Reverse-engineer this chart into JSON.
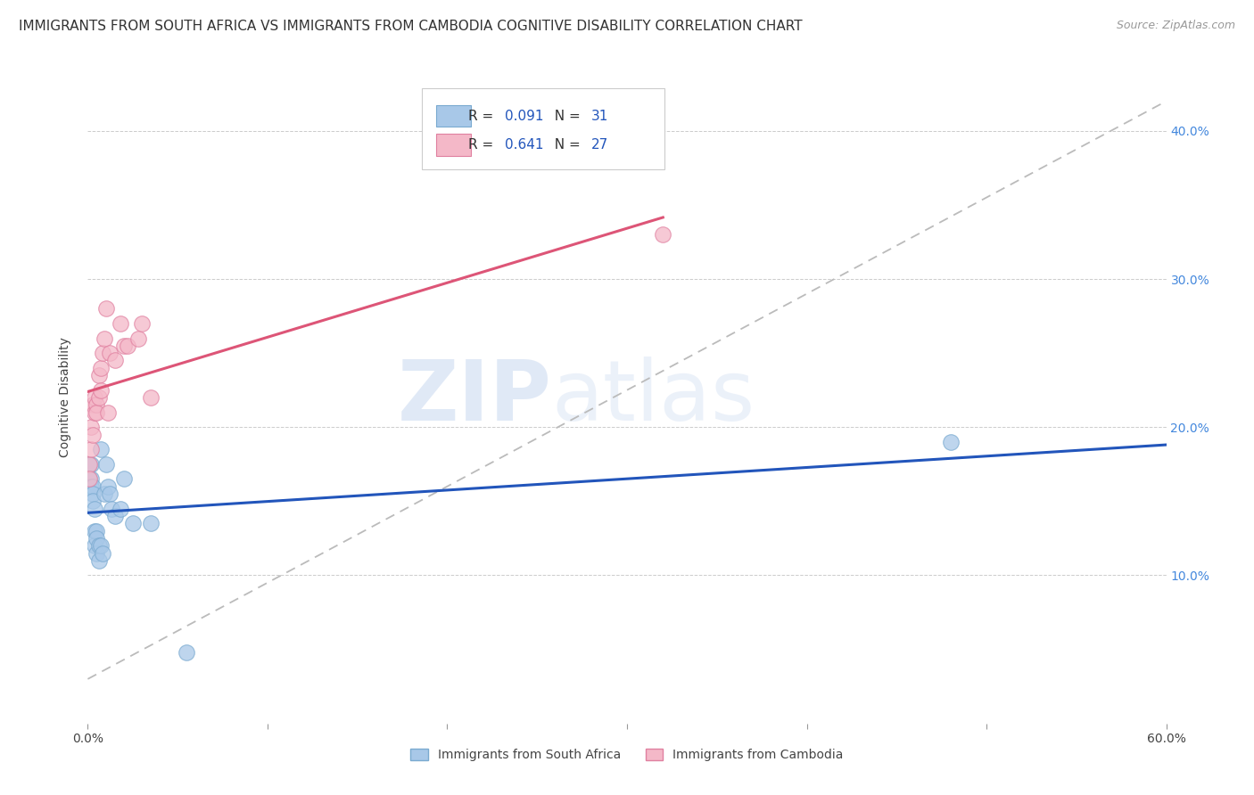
{
  "title": "IMMIGRANTS FROM SOUTH AFRICA VS IMMIGRANTS FROM CAMBODIA COGNITIVE DISABILITY CORRELATION CHART",
  "source": "Source: ZipAtlas.com",
  "ylabel": "Cognitive Disability",
  "xlim": [
    0.0,
    0.6
  ],
  "ylim": [
    0.0,
    0.44
  ],
  "south_africa_color": "#a8c8e8",
  "south_africa_edge": "#7aaad0",
  "cambodia_color": "#f4b8c8",
  "cambodia_edge": "#e080a0",
  "south_africa_line_color": "#2255bb",
  "cambodia_line_color": "#dd5577",
  "ref_line_color": "#bbbbbb",
  "background_color": "#ffffff",
  "grid_color": "#cccccc",
  "legend_r_color": "#2255bb",
  "south_africa_x": [
    0.001,
    0.001,
    0.002,
    0.002,
    0.002,
    0.003,
    0.003,
    0.003,
    0.004,
    0.004,
    0.004,
    0.005,
    0.005,
    0.005,
    0.006,
    0.006,
    0.007,
    0.007,
    0.008,
    0.009,
    0.01,
    0.011,
    0.012,
    0.013,
    0.015,
    0.018,
    0.02,
    0.025,
    0.035,
    0.055,
    0.48
  ],
  "south_africa_y": [
    0.175,
    0.165,
    0.175,
    0.165,
    0.16,
    0.16,
    0.155,
    0.15,
    0.145,
    0.13,
    0.12,
    0.13,
    0.125,
    0.115,
    0.12,
    0.11,
    0.185,
    0.12,
    0.115,
    0.155,
    0.175,
    0.16,
    0.155,
    0.145,
    0.14,
    0.145,
    0.165,
    0.135,
    0.135,
    0.048,
    0.19
  ],
  "cambodia_x": [
    0.001,
    0.001,
    0.002,
    0.002,
    0.003,
    0.003,
    0.004,
    0.004,
    0.005,
    0.005,
    0.006,
    0.006,
    0.007,
    0.007,
    0.008,
    0.009,
    0.01,
    0.011,
    0.012,
    0.015,
    0.018,
    0.02,
    0.022,
    0.028,
    0.03,
    0.035,
    0.32
  ],
  "cambodia_y": [
    0.175,
    0.165,
    0.2,
    0.185,
    0.195,
    0.215,
    0.21,
    0.22,
    0.215,
    0.21,
    0.235,
    0.22,
    0.24,
    0.225,
    0.25,
    0.26,
    0.28,
    0.21,
    0.25,
    0.245,
    0.27,
    0.255,
    0.255,
    0.26,
    0.27,
    0.22,
    0.33
  ],
  "south_africa_R": 0.091,
  "cambodia_R": 0.641,
  "south_africa_N": 31,
  "cambodia_N": 27,
  "watermark_zip": "ZIP",
  "watermark_atlas": "atlas",
  "title_fontsize": 11,
  "label_fontsize": 10,
  "tick_fontsize": 10,
  "legend_fontsize": 11,
  "marker_size": 160
}
